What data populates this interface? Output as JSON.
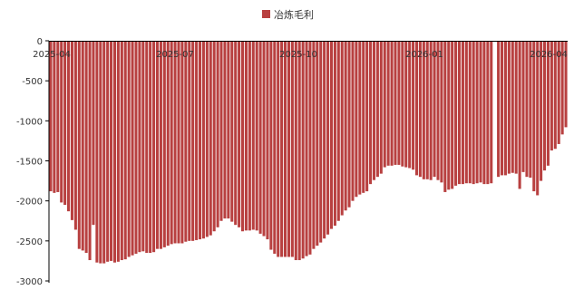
{
  "chart_data": {
    "type": "bar",
    "title": "",
    "xlabel": "",
    "ylabel": "",
    "legend": {
      "position": "top-center",
      "entries": [
        "冶炼毛利"
      ]
    },
    "series": [
      {
        "name": "冶炼毛利",
        "color": "#b84040",
        "values": [
          -1880,
          -1900,
          -1890,
          -2020,
          -2050,
          -2130,
          -2240,
          -2360,
          -2600,
          -2620,
          -2650,
          -2740,
          -2300,
          -2770,
          -2780,
          -2780,
          -2760,
          -2750,
          -2770,
          -2760,
          -2740,
          -2730,
          -2700,
          -2680,
          -2660,
          -2640,
          -2630,
          -2650,
          -2650,
          -2640,
          -2600,
          -2600,
          -2580,
          -2560,
          -2540,
          -2530,
          -2530,
          -2530,
          -2510,
          -2500,
          -2500,
          -2490,
          -2480,
          -2470,
          -2450,
          -2430,
          -2380,
          -2330,
          -2250,
          -2220,
          -2220,
          -2260,
          -2300,
          -2330,
          -2380,
          -2370,
          -2370,
          -2360,
          -2370,
          -2410,
          -2440,
          -2480,
          -2610,
          -2660,
          -2700,
          -2700,
          -2700,
          -2700,
          -2700,
          -2740,
          -2740,
          -2720,
          -2690,
          -2670,
          -2600,
          -2560,
          -2520,
          -2470,
          -2420,
          -2350,
          -2310,
          -2250,
          -2180,
          -2120,
          -2080,
          -2000,
          -1950,
          -1920,
          -1900,
          -1880,
          -1790,
          -1740,
          -1700,
          -1660,
          -1580,
          -1560,
          -1560,
          -1550,
          -1550,
          -1570,
          -1580,
          -1590,
          -1610,
          -1680,
          -1700,
          -1730,
          -1730,
          -1740,
          -1700,
          -1740,
          -1770,
          -1890,
          -1860,
          -1850,
          -1810,
          -1790,
          -1790,
          -1780,
          -1780,
          -1790,
          -1780,
          -1770,
          -1790,
          -1790,
          -1780,
          0,
          -1700,
          -1680,
          -1680,
          -1660,
          -1650,
          -1660,
          -1850,
          -1640,
          -1700,
          -1710,
          -1880,
          -1930,
          -1750,
          -1620,
          -1560,
          -1370,
          -1350,
          -1290,
          -1170,
          -1080
        ]
      }
    ],
    "x_ticks": [
      "2025-04",
      "2025-07",
      "2025-10",
      "2026-01",
      "2026-04"
    ],
    "y_ticks": [
      "0",
      "-500",
      "-1000",
      "-1500",
      "-2000",
      "-2500",
      "-3000"
    ],
    "ylim": [
      -3000,
      0
    ],
    "grid": false
  }
}
